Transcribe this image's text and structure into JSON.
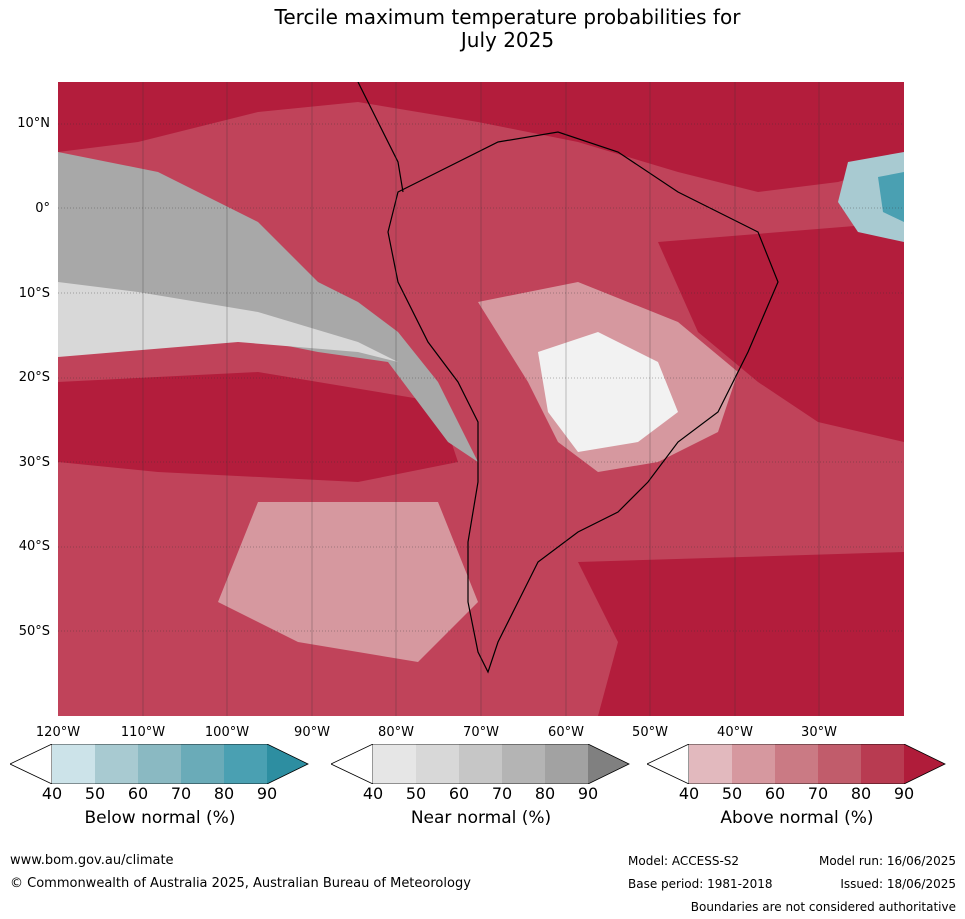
{
  "title_line1": "Tercile maximum temperature probabilities for",
  "title_line2": "July 2025",
  "lat_labels": [
    "10°N",
    "0°",
    "10°S",
    "20°S",
    "30°S",
    "40°S",
    "50°S"
  ],
  "lon_labels": [
    "120°W",
    "110°W",
    "100°W",
    "90°W",
    "80°W",
    "70°W",
    "60°W",
    "50°W",
    "40°W",
    "30°W"
  ],
  "colorbars": [
    {
      "title": "Below normal (%)",
      "ticks": [
        "40",
        "50",
        "60",
        "70",
        "80",
        "90"
      ],
      "colors": [
        "#ffffff",
        "#cce3e9",
        "#a8cad1",
        "#8ab9c2",
        "#6aabb8",
        "#4aa0b2",
        "#2d8ea1"
      ]
    },
    {
      "title": "Near normal (%)",
      "ticks": [
        "40",
        "50",
        "60",
        "70",
        "80",
        "90"
      ],
      "colors": [
        "#ffffff",
        "#e6e6e6",
        "#d8d8d8",
        "#c6c6c6",
        "#b4b4b4",
        "#a2a2a2",
        "#808080"
      ]
    },
    {
      "title": "Above normal (%)",
      "ticks": [
        "40",
        "50",
        "60",
        "70",
        "80",
        "90"
      ],
      "colors": [
        "#ffffff",
        "#e2b9be",
        "#d6989f",
        "#ca7a84",
        "#c15c6b",
        "#b83b51",
        "#b01c3a"
      ]
    }
  ],
  "footer": {
    "url": "www.bom.gov.au/climate",
    "copyright": "© Commonwealth of Australia 2025, Australian Bureau of Meteorology",
    "model": "Model: ACCESS-S2",
    "model_run": "Model run: 16/06/2025",
    "base_period": "Base period: 1981-2018",
    "issued": "Issued: 18/06/2025",
    "disclaimer": "Boundaries are not considered authoritative"
  }
}
